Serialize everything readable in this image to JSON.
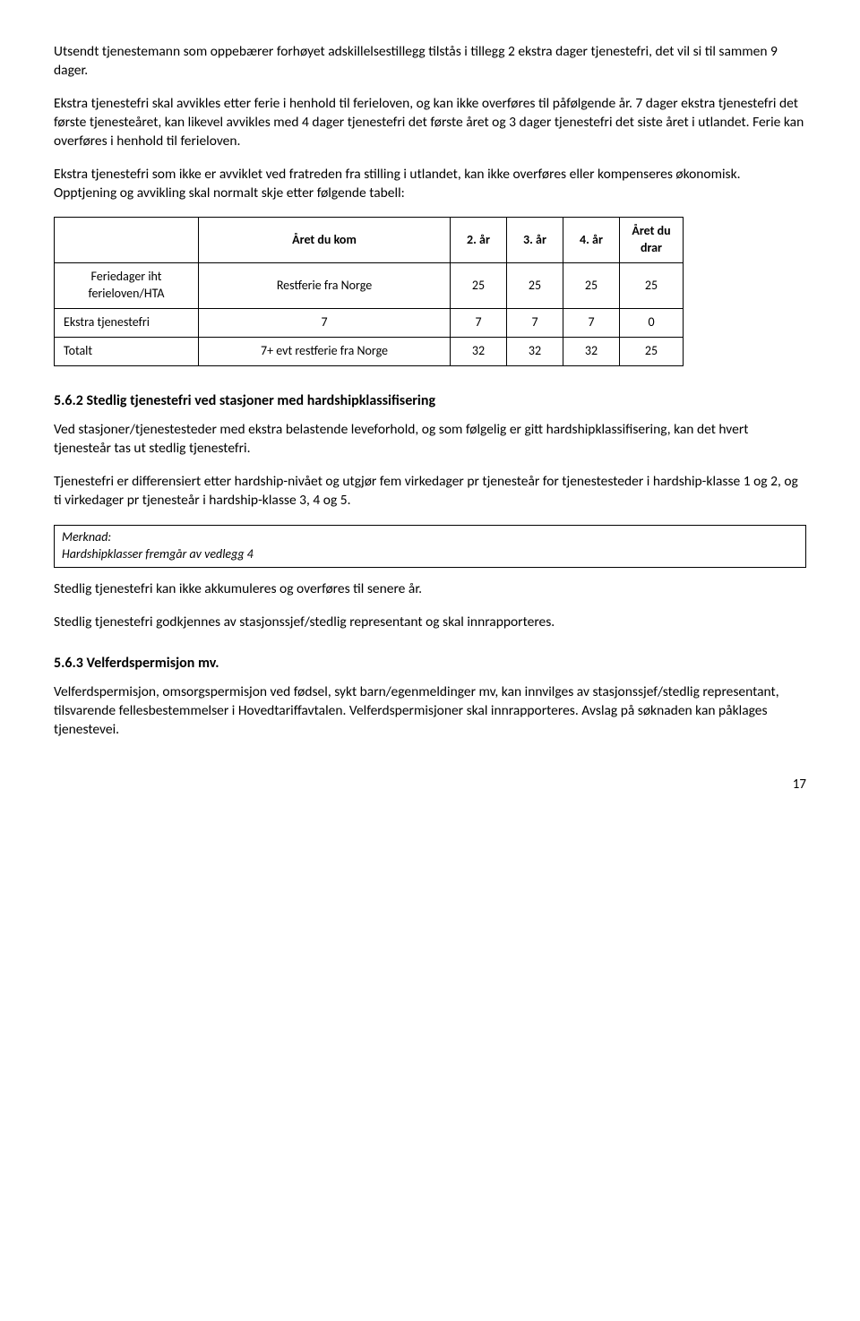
{
  "paragraphs": {
    "p1": "Utsendt tjenestemann som oppebærer forhøyet adskillelsestillegg tilstås i tillegg 2 ekstra dager tjenestefri, det vil si til sammen 9 dager.",
    "p2": "Ekstra tjenestefri skal avvikles etter ferie i henhold til ferieloven, og kan ikke overføres til påfølgende år. 7 dager ekstra tjenestefri det første tjenesteåret, kan likevel avvikles med 4 dager tjenestefri det første året og 3 dager tjenestefri det siste året i utlandet. Ferie kan overføres i henhold til ferieloven.",
    "p3": "Ekstra tjenestefri som ikke er avviklet ved fratreden fra stilling i utlandet, kan ikke overføres eller kompenseres økonomisk. Opptjening og avvikling skal normalt skje etter følgende tabell:",
    "p4": "Ved stasjoner/tjenestesteder med ekstra belastende leveforhold, og som følgelig er gitt hardshipklassifisering, kan det hvert tjenesteår tas ut stedlig tjenestefri.",
    "p5": "Tjenestefri er differensiert etter hardship-nivået og utgjør fem virkedager pr tjenesteår for tjenestesteder i hardship-klasse 1 og 2, og ti virkedager pr tjenesteår i hardship-klasse 3, 4 og 5.",
    "p6": "Stedlig tjenestefri kan ikke akkumuleres og overføres til senere år.",
    "p7": "Stedlig tjenestefri godkjennes av stasjonssjef/stedlig representant og skal innrapporteres.",
    "p8": "Velferdspermisjon, omsorgspermisjon ved fødsel, sykt barn/egenmeldinger mv, kan innvilges av stasjonssjef/stedlig representant, tilsvarende fellesbestemmelser i Hovedtariffavtalen. Velferdspermisjoner skal innrapporteres.  Avslag på søknaden kan påklages tjenestevei."
  },
  "headings": {
    "h562": "5.6.2 Stedlig tjenestefri ved stasjoner med hardshipklassifisering",
    "h563": "5.6.3 Velferdspermisjon mv."
  },
  "merknad": {
    "label": "Merknad:",
    "text": "Hardshipklasser fremgår av vedlegg 4"
  },
  "table": {
    "headers": {
      "col1": "",
      "col2": "Året du kom",
      "col3": "2. år",
      "col4": "3. år",
      "col5": "4. år",
      "col6": "Året du drar"
    },
    "rows": [
      {
        "label": "Feriedager iht ferieloven/HTA",
        "main": "Restferie fra Norge",
        "y2": "25",
        "y3": "25",
        "y4": "25",
        "y5": "25"
      },
      {
        "label": "Ekstra tjenestefri",
        "main": "7",
        "y2": "7",
        "y3": "7",
        "y4": "7",
        "y5": "0"
      },
      {
        "label": "Totalt",
        "main": "7+ evt restferie fra Norge",
        "y2": "32",
        "y3": "32",
        "y4": "32",
        "y5": "25"
      }
    ]
  },
  "page_number": "17"
}
